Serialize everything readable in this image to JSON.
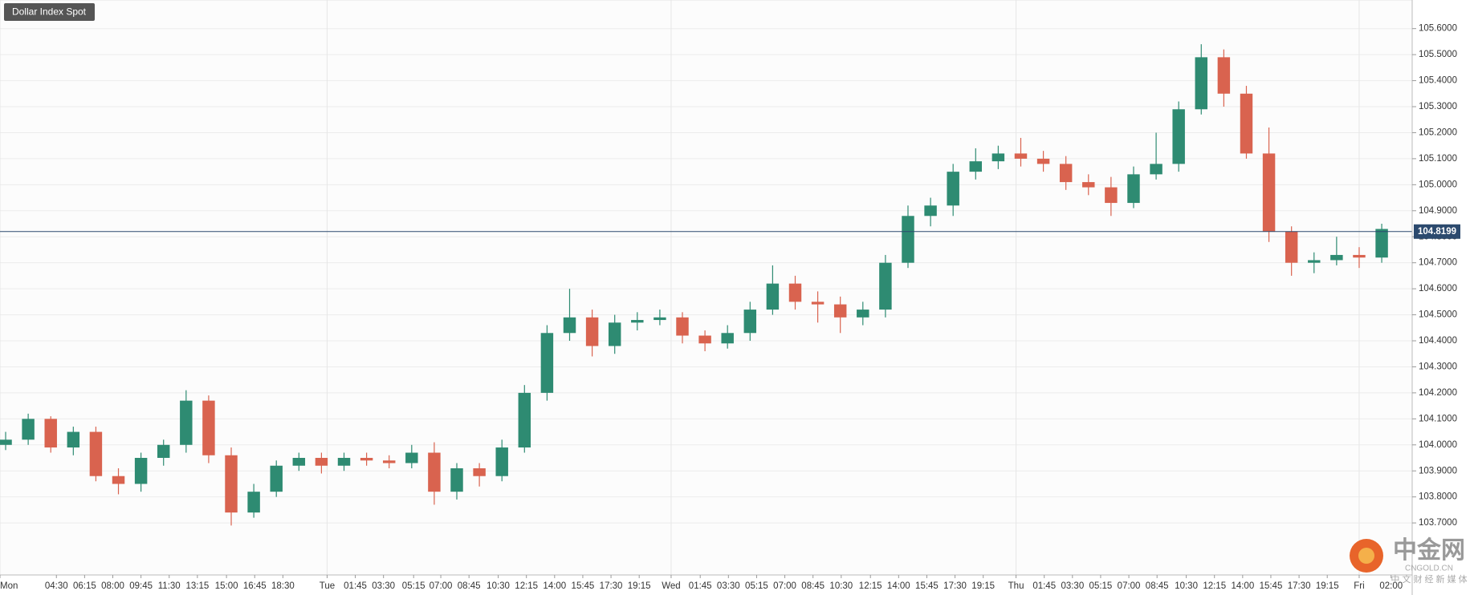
{
  "chart_data": {
    "type": "candlestick",
    "title": "Dollar Index Spot",
    "x": [
      0.5,
      2.5,
      4.5,
      6.5,
      8.5,
      10.5,
      12.5,
      14.5,
      16.5,
      18.5,
      20.5,
      22.5,
      24.5,
      26.5,
      28.5,
      30.5,
      32.5,
      34.5,
      36.5,
      38.5,
      40.5,
      42.5,
      44.5,
      46.5,
      48.5,
      50.5,
      52.5,
      54.5,
      56.5,
      58.5,
      60.5,
      62.5,
      64.5,
      66.5,
      68.5,
      70.5,
      72.5,
      74.5,
      76.5,
      78.5,
      80.5,
      82.5,
      84.5,
      86.5,
      88.5,
      90.5,
      92.5,
      94.5,
      96.5,
      98.5,
      100.5,
      102.5,
      104.5,
      106.5,
      108.5,
      110.5,
      112.5,
      114.5,
      116.5,
      118.5,
      120.5,
      122.5
    ],
    "open": [
      104.0,
      104.02,
      104.1,
      103.99,
      104.05,
      103.88,
      103.85,
      103.95,
      104.0,
      104.17,
      103.96,
      103.74,
      103.82,
      103.92,
      103.95,
      103.92,
      103.95,
      103.94,
      103.93,
      103.97,
      103.82,
      103.91,
      103.88,
      103.99,
      104.2,
      104.43,
      104.49,
      104.38,
      104.47,
      104.48,
      104.49,
      104.42,
      104.39,
      104.43,
      104.52,
      104.62,
      104.55,
      104.54,
      104.49,
      104.52,
      104.7,
      104.88,
      104.92,
      105.05,
      105.09,
      105.12,
      105.1,
      105.08,
      105.01,
      104.99,
      104.93,
      105.04,
      105.08,
      105.29,
      105.49,
      105.35,
      105.12,
      104.82,
      104.7,
      104.71,
      104.73,
      104.72
    ],
    "high": [
      104.05,
      104.12,
      104.11,
      104.07,
      104.07,
      103.91,
      103.97,
      104.02,
      104.21,
      104.19,
      103.99,
      103.85,
      103.94,
      103.97,
      103.97,
      103.97,
      103.97,
      103.96,
      104.0,
      104.01,
      103.93,
      103.93,
      104.02,
      104.23,
      104.46,
      104.6,
      104.52,
      104.5,
      104.51,
      104.52,
      104.51,
      104.44,
      104.46,
      104.55,
      104.69,
      104.65,
      104.59,
      104.57,
      104.55,
      104.73,
      104.92,
      104.95,
      105.08,
      105.14,
      105.15,
      105.18,
      105.13,
      105.11,
      105.04,
      105.03,
      105.07,
      105.2,
      105.32,
      105.54,
      105.52,
      105.38,
      105.22,
      104.84,
      104.74,
      104.8,
      104.76,
      104.85
    ],
    "low": [
      103.98,
      104.0,
      103.97,
      103.96,
      103.86,
      103.81,
      103.82,
      103.92,
      103.97,
      103.93,
      103.69,
      103.72,
      103.8,
      103.9,
      103.89,
      103.9,
      103.92,
      103.91,
      103.91,
      103.77,
      103.79,
      103.84,
      103.86,
      103.97,
      104.17,
      104.4,
      104.34,
      104.35,
      104.44,
      104.46,
      104.39,
      104.36,
      104.37,
      104.4,
      104.5,
      104.52,
      104.47,
      104.43,
      104.46,
      104.49,
      104.68,
      104.84,
      104.88,
      105.02,
      105.06,
      105.07,
      105.05,
      104.98,
      104.96,
      104.88,
      104.91,
      105.02,
      105.05,
      105.27,
      105.3,
      105.1,
      104.78,
      104.65,
      104.66,
      104.69,
      104.68,
      104.7
    ],
    "close": [
      104.02,
      104.1,
      103.99,
      104.05,
      103.88,
      103.85,
      103.95,
      104.0,
      104.17,
      103.96,
      103.74,
      103.82,
      103.92,
      103.95,
      103.92,
      103.95,
      103.94,
      103.93,
      103.97,
      103.82,
      103.91,
      103.88,
      103.99,
      104.2,
      104.43,
      104.49,
      104.38,
      104.47,
      104.48,
      104.49,
      104.42,
      104.39,
      104.43,
      104.52,
      104.62,
      104.55,
      104.54,
      104.49,
      104.52,
      104.7,
      104.88,
      104.92,
      105.05,
      105.09,
      105.12,
      105.1,
      105.08,
      105.01,
      104.99,
      104.93,
      105.04,
      105.08,
      105.29,
      105.49,
      105.35,
      105.12,
      104.82,
      104.7,
      104.71,
      104.73,
      104.72,
      104.83
    ],
    "up_color": "#2e8b72",
    "down_color": "#d9634f",
    "last_price": 104.8199,
    "last_price_color": "#2c4a6e",
    "xlim": [
      0,
      125.2
    ],
    "xticks": [
      {
        "value": 0,
        "label": "Mon"
      },
      {
        "value": 5,
        "label": "04:30"
      },
      {
        "value": 7.5,
        "label": "06:15"
      },
      {
        "value": 10,
        "label": "08:00"
      },
      {
        "value": 12.5,
        "label": "09:45"
      },
      {
        "value": 15,
        "label": "11:30"
      },
      {
        "value": 17.5,
        "label": "13:15"
      },
      {
        "value": 20.08,
        "label": "15:00"
      },
      {
        "value": 22.58,
        "label": "16:45"
      },
      {
        "value": 25.08,
        "label": "18:30"
      },
      {
        "value": 29,
        "label": "Tue"
      },
      {
        "value": 31.5,
        "label": "01:45"
      },
      {
        "value": 34,
        "label": "03:30"
      },
      {
        "value": 36.67,
        "label": "05:15"
      },
      {
        "value": 39.08,
        "label": "07:00"
      },
      {
        "value": 41.58,
        "label": "08:45"
      },
      {
        "value": 44.17,
        "label": "10:30"
      },
      {
        "value": 46.67,
        "label": "12:15"
      },
      {
        "value": 49.17,
        "label": "14:00"
      },
      {
        "value": 51.67,
        "label": "15:45"
      },
      {
        "value": 54.17,
        "label": "17:30"
      },
      {
        "value": 56.67,
        "label": "19:15"
      },
      {
        "value": 59.5,
        "label": "Wed"
      },
      {
        "value": 62.08,
        "label": "01:45"
      },
      {
        "value": 64.58,
        "label": "03:30"
      },
      {
        "value": 67.08,
        "label": "05:15"
      },
      {
        "value": 69.58,
        "label": "07:00"
      },
      {
        "value": 72.08,
        "label": "08:45"
      },
      {
        "value": 74.58,
        "label": "10:30"
      },
      {
        "value": 77.17,
        "label": "12:15"
      },
      {
        "value": 79.67,
        "label": "14:00"
      },
      {
        "value": 82.17,
        "label": "15:45"
      },
      {
        "value": 84.67,
        "label": "17:30"
      },
      {
        "value": 87.17,
        "label": "19:15"
      },
      {
        "value": 90.08,
        "label": "Thu"
      },
      {
        "value": 92.58,
        "label": "01:45"
      },
      {
        "value": 95.08,
        "label": "03:30"
      },
      {
        "value": 97.58,
        "label": "05:15"
      },
      {
        "value": 100.08,
        "label": "07:00"
      },
      {
        "value": 102.58,
        "label": "08:45"
      },
      {
        "value": 105.17,
        "label": "10:30"
      },
      {
        "value": 107.67,
        "label": "12:15"
      },
      {
        "value": 110.17,
        "label": "14:00"
      },
      {
        "value": 112.67,
        "label": "15:45"
      },
      {
        "value": 115.17,
        "label": "17:30"
      },
      {
        "value": 117.67,
        "label": "19:15"
      },
      {
        "value": 120.5,
        "label": "Fri"
      },
      {
        "value": 123.33,
        "label": "02:00"
      }
    ],
    "ylim": [
      103.5,
      105.71
    ],
    "yticks": [
      {
        "value": 103.7,
        "label": "103.7000"
      },
      {
        "value": 103.8,
        "label": "103.8000"
      },
      {
        "value": 103.9,
        "label": "103.9000"
      },
      {
        "value": 104.0,
        "label": "104.0000"
      },
      {
        "value": 104.1,
        "label": "104.1000"
      },
      {
        "value": 104.2,
        "label": "104.2000"
      },
      {
        "value": 104.3,
        "label": "104.3000"
      },
      {
        "value": 104.4,
        "label": "104.4000"
      },
      {
        "value": 104.5,
        "label": "104.5000"
      },
      {
        "value": 104.6,
        "label": "104.6000"
      },
      {
        "value": 104.7,
        "label": "104.7000"
      },
      {
        "value": 104.8,
        "label": "104.8000"
      },
      {
        "value": 104.9,
        "label": "104.9000"
      },
      {
        "value": 105.0,
        "label": "105.0000"
      },
      {
        "value": 105.1,
        "label": "105.1000"
      },
      {
        "value": 105.2,
        "label": "105.2000"
      },
      {
        "value": 105.3,
        "label": "105.3000"
      },
      {
        "value": 105.4,
        "label": "105.4000"
      },
      {
        "value": 105.5,
        "label": "105.5000"
      },
      {
        "value": 105.6,
        "label": "105.6000"
      }
    ],
    "grid": true,
    "watermark": {
      "name": "中金网",
      "site": "CNGOLD.CN",
      "tagline": "中 文 财 经 新 媒 体"
    }
  }
}
